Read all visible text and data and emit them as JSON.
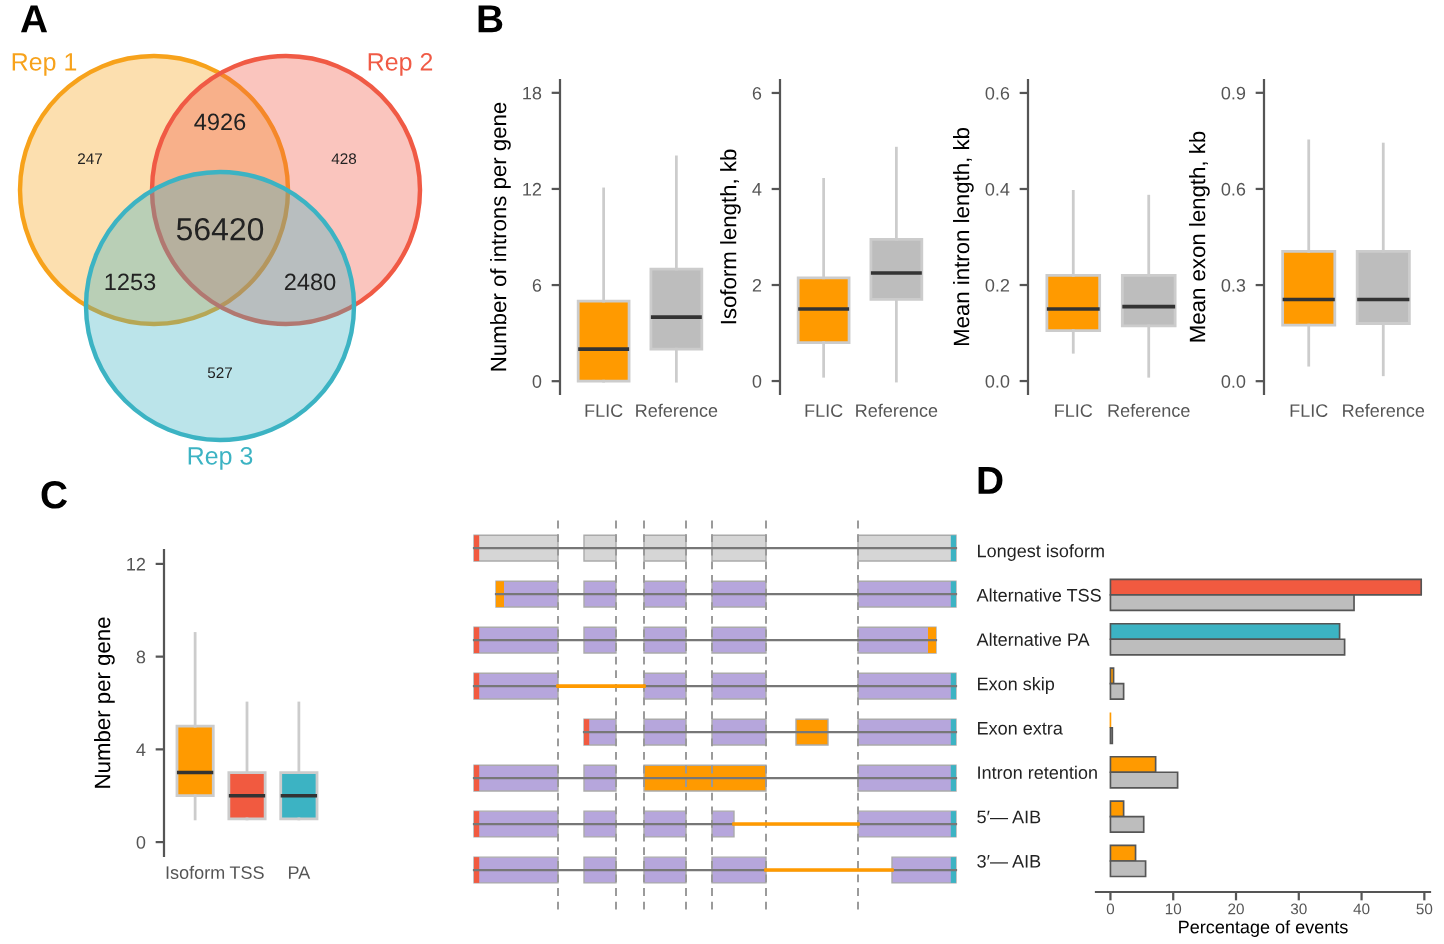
{
  "chart_data": [
    {
      "type": "other",
      "title": "A",
      "categories": [
        "Rep 1",
        "Rep 2",
        "Rep 3"
      ],
      "colors": [
        "#f7a21b",
        "#f05a45",
        "#3cb3c3"
      ],
      "annotations": [
        "247",
        "428",
        "527",
        "4926",
        "1253",
        "2480",
        "56420"
      ]
    },
    {
      "type": "box",
      "title": "B",
      "categories": [
        "FLIC",
        "Reference"
      ],
      "colors": [
        "#ff9a00",
        "#bdbdbd"
      ],
      "ylabel": "Number of introns per gene",
      "ylim": [
        -0.8,
        18.8
      ],
      "yticks": [
        0,
        6,
        12,
        18
      ],
      "boxes": [
        {
          "low": 0,
          "q1": 0,
          "median": 2,
          "q3": 5,
          "high": 12
        },
        {
          "low": 0,
          "q1": 2,
          "median": 4,
          "q3": 7,
          "high": 14
        }
      ]
    },
    {
      "type": "box",
      "categories": [
        "FLIC",
        "Reference"
      ],
      "colors": [
        "#ff9a00",
        "#bdbdbd"
      ],
      "ylabel": "Isoform length, kb",
      "ylim": [
        -0.27,
        6.27
      ],
      "yticks": [
        0,
        2,
        4,
        6
      ],
      "boxes": [
        {
          "low": 0.1,
          "q1": 0.8,
          "median": 1.5,
          "q3": 2.15,
          "high": 4.2
        },
        {
          "low": 0,
          "q1": 1.7,
          "median": 2.25,
          "q3": 2.95,
          "high": 4.85
        }
      ]
    },
    {
      "type": "box",
      "categories": [
        "FLIC",
        "Reference"
      ],
      "colors": [
        "#ff9a00",
        "#bdbdbd"
      ],
      "ylabel": "Mean intron length, kb",
      "ylim": [
        -0.027,
        0.627
      ],
      "yticks": [
        {
          "value": 0,
          "label": "0.0"
        },
        0.2,
        0.4,
        0.6
      ],
      "boxes": [
        {
          "low": 0.06,
          "q1": 0.105,
          "median": 0.15,
          "q3": 0.22,
          "high": 0.395
        },
        {
          "low": 0.01,
          "q1": 0.115,
          "median": 0.155,
          "q3": 0.22,
          "high": 0.385
        }
      ]
    },
    {
      "type": "box",
      "categories": [
        "FLIC",
        "Reference"
      ],
      "colors": [
        "#ff9a00",
        "#bdbdbd"
      ],
      "ylabel": "Mean exon length, kb",
      "ylim": [
        -0.04,
        0.94
      ],
      "yticks": [
        {
          "value": 0,
          "label": "0.0"
        },
        0.3,
        0.6,
        0.9
      ],
      "boxes": [
        {
          "low": 0.05,
          "q1": 0.175,
          "median": 0.255,
          "q3": 0.405,
          "high": 0.75
        },
        {
          "low": 0.02,
          "q1": 0.18,
          "median": 0.255,
          "q3": 0.405,
          "high": 0.74
        }
      ]
    },
    {
      "type": "box",
      "title": "C",
      "categories": [
        "Isoform",
        "TSS",
        "PA"
      ],
      "colors": [
        "#ff9a00",
        "#f15a40",
        "#3cb3c3"
      ],
      "ylabel": "Number per gene",
      "ylim": [
        -0.6,
        12.6
      ],
      "yticks": [
        0,
        4,
        8,
        12
      ],
      "boxes": [
        {
          "low": 1,
          "q1": 2,
          "median": 3,
          "q3": 5,
          "high": 9
        },
        {
          "low": 1,
          "q1": 1,
          "median": 2,
          "q3": 3,
          "high": 6
        },
        {
          "low": 1,
          "q1": 1,
          "median": 2,
          "q3": 3,
          "high": 6
        }
      ]
    },
    {
      "type": "bar",
      "title": "D",
      "orientation": "horizontal",
      "categories": [
        "Longest isoform",
        "Alternative TSS",
        "Alternative PA",
        "Exon skip",
        "Exon extra",
        "Intron retention",
        "5′— AIB",
        "3′— AIB"
      ],
      "series": [
        {
          "colors": [
            "#ff9a00",
            "#f15a40",
            "#3cb3c3",
            "#ff9a00",
            "#ff9a00",
            "#ff9a00",
            "#ff9a00",
            "#ff9a00"
          ],
          "values": [
            null,
            49.5,
            36.5,
            0.5,
            0,
            7.2,
            2.1,
            4.0
          ]
        },
        {
          "color": "#bdbdbd",
          "values": [
            null,
            38.8,
            37.3,
            2.1,
            0.3,
            10.7,
            5.3,
            5.6
          ]
        }
      ],
      "xlim": [
        -2.3,
        50.9
      ],
      "xticks": [
        0,
        10,
        20,
        30,
        40,
        50
      ],
      "xlabel": "Percentage of events"
    }
  ]
}
